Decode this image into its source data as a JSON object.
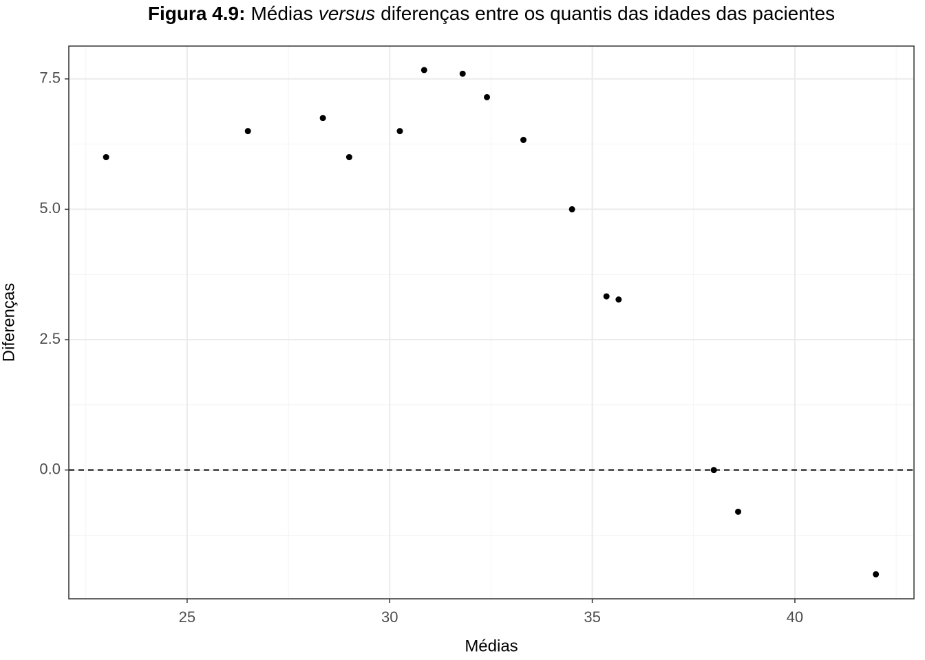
{
  "chart_data": {
    "type": "scatter",
    "title_parts": [
      "Figura 4.9:",
      "Médias",
      "versus",
      "diferenças entre os quantis das idades das pacientes"
    ],
    "xlabel": "Médias",
    "ylabel": "Diferenças",
    "x": [
      23.0,
      26.5,
      28.35,
      29.0,
      30.25,
      30.85,
      31.8,
      32.4,
      33.3,
      34.5,
      35.35,
      35.65,
      38.0,
      38.6,
      42.0
    ],
    "series": [
      {
        "color": "#000000",
        "values": [
          6.0,
          6.5,
          6.75,
          6.0,
          6.5,
          7.67,
          7.6,
          7.15,
          6.33,
          5.0,
          3.33,
          3.27,
          0.0,
          -0.8,
          -2.0
        ]
      }
    ],
    "xlim": [
      22.08,
      42.94
    ],
    "ylim": [
      -2.47,
      8.13
    ],
    "xticks": [
      25,
      30,
      35,
      40
    ],
    "yticks": [
      {
        "value": 0,
        "label": "0.0"
      },
      2.5,
      {
        "value": 5,
        "label": "5.0"
      },
      7.5
    ],
    "xminor": [
      22.5,
      27.5,
      32.5,
      37.5,
      42.5
    ],
    "yminor": [
      -1.25,
      1.25,
      3.75,
      6.25
    ],
    "hline": 0,
    "grid": true
  }
}
